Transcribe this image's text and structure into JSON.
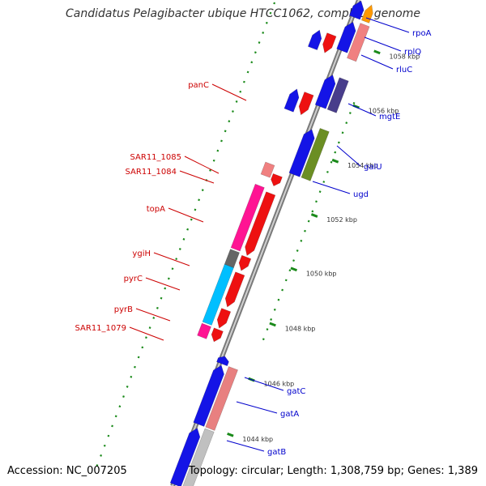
{
  "title": "Candidatus Pelagibacter ubique HTCC1062, complete genome",
  "footer": {
    "accession": "Accession: NC_007205",
    "topology": "Topology: circular; Length: 1,308,759 bp; Genes: 1,389"
  },
  "colors": {
    "backbone": "#8c8c8c",
    "forward_gene": "#0000ee",
    "reverse_gene": "#ee0000",
    "forward_label": "#0000cc",
    "reverse_label": "#cc0000",
    "tick": "#1a8a1a"
  },
  "ticks": [
    {
      "label": "1044 kbp"
    },
    {
      "label": "1046 kbp"
    },
    {
      "label": "1048 kbp"
    },
    {
      "label": "1050 kbp"
    },
    {
      "label": "1052 kbp"
    },
    {
      "label": "1054 kbp"
    },
    {
      "label": "1056 kbp"
    },
    {
      "label": "1058 kbp"
    }
  ],
  "forward_labels": [
    "rpoA",
    "rplQ",
    "rluC",
    "mgtE",
    "galU",
    "ugd",
    "gatC",
    "gatA",
    "gatB"
  ],
  "reverse_labels": [
    "panC",
    "SAR11_1085",
    "SAR11_1084",
    "topA",
    "ygiH",
    "pyrC",
    "pyrB",
    "SAR11_1079"
  ]
}
